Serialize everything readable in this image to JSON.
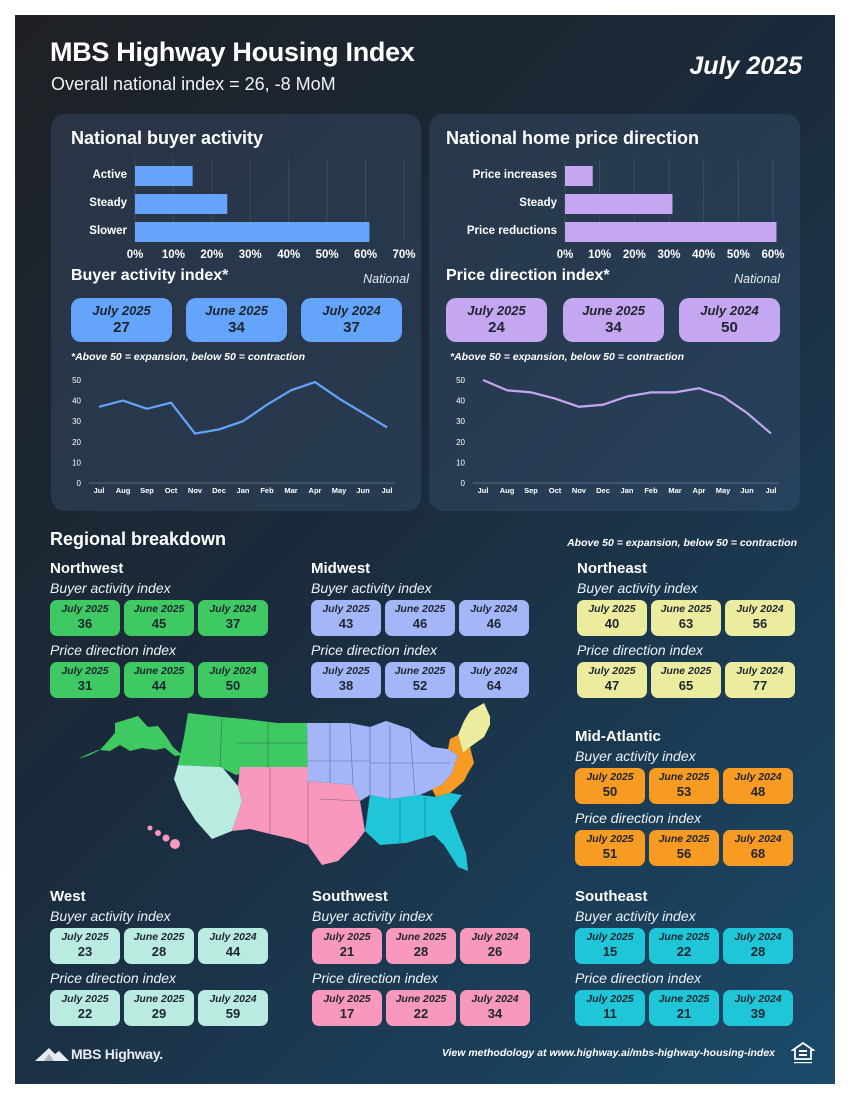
{
  "header": {
    "title": "MBS Highway Housing Index",
    "subtitle": "Overall national index = 26, -8 MoM",
    "date": "July 2025"
  },
  "colors": {
    "buyer": "#64a4fa",
    "price": "#c5a6f1",
    "northwest": "#3ec962",
    "midwest": "#a3b6f8",
    "northeast": "#ecec9e",
    "midatlantic": "#f79b22",
    "west": "#b9ebe1",
    "southwest": "#f898bd",
    "southeast": "#1ec6d8"
  },
  "national": {
    "buyer_panel_title": "National buyer activity",
    "price_panel_title": "National home price direction",
    "buyer_index_title": "Buyer activity index*",
    "price_index_title": "Price direction index*",
    "national_label": "National",
    "note": "*Above 50 = expansion, below 50 = contraction",
    "buyer_boxes": [
      {
        "period": "July 2025",
        "value": "27"
      },
      {
        "period": "June 2025",
        "value": "34"
      },
      {
        "period": "July 2024",
        "value": "37"
      }
    ],
    "price_boxes": [
      {
        "period": "July 2025",
        "value": "24"
      },
      {
        "period": "June 2025",
        "value": "34"
      },
      {
        "period": "July 2024",
        "value": "50"
      }
    ]
  },
  "chart_data": [
    {
      "id": "buyer-activity-bars",
      "type": "bar",
      "orientation": "horizontal",
      "categories": [
        "Active",
        "Steady",
        "Slower"
      ],
      "values": [
        15,
        24,
        61
      ],
      "xlim": [
        0,
        70
      ],
      "xticks": [
        "0%",
        "10%",
        "20%",
        "30%",
        "40%",
        "50%",
        "60%",
        "70%"
      ],
      "color": "#64a4fa"
    },
    {
      "id": "price-direction-bars",
      "type": "bar",
      "orientation": "horizontal",
      "categories": [
        "Price increases",
        "Steady",
        "Price reductions"
      ],
      "values": [
        8,
        31,
        61
      ],
      "xlim": [
        0,
        60
      ],
      "xticks": [
        "0%",
        "10%",
        "20%",
        "30%",
        "40%",
        "50%",
        "60%"
      ],
      "color": "#c5a6f1"
    },
    {
      "id": "buyer-activity-line",
      "type": "line",
      "x": [
        "Jul",
        "Aug",
        "Sep",
        "Oct",
        "Nov",
        "Dec",
        "Jan",
        "Feb",
        "Mar",
        "Apr",
        "May",
        "Jun",
        "Jul"
      ],
      "values": [
        37,
        40,
        36,
        39,
        24,
        26,
        30,
        38,
        45,
        49,
        41,
        34,
        27
      ],
      "ylim": [
        0,
        50
      ],
      "yticks": [
        0,
        10,
        20,
        30,
        40,
        50
      ],
      "color": "#64a4fa"
    },
    {
      "id": "price-direction-line",
      "type": "line",
      "x": [
        "Jul",
        "Aug",
        "Sep",
        "Oct",
        "Nov",
        "Dec",
        "Jan",
        "Feb",
        "Mar",
        "Apr",
        "May",
        "Jun",
        "Jul"
      ],
      "values": [
        50,
        45,
        44,
        41,
        37,
        38,
        42,
        44,
        44,
        46,
        42,
        34,
        24
      ],
      "ylim": [
        0,
        50
      ],
      "yticks": [
        0,
        10,
        20,
        30,
        40,
        50
      ],
      "color": "#c5a6f1"
    }
  ],
  "regional": {
    "title": "Regional breakdown",
    "note": "Above 50 = expansion, below 50 = contraction",
    "buyer_label": "Buyer activity index",
    "price_label": "Price direction index",
    "regions": [
      {
        "name": "Northwest",
        "color": "#3ec962",
        "buyer": [
          {
            "p": "July 2025",
            "v": "36"
          },
          {
            "p": "June 2025",
            "v": "45"
          },
          {
            "p": "July 2024",
            "v": "37"
          }
        ],
        "price": [
          {
            "p": "July 2025",
            "v": "31"
          },
          {
            "p": "June 2025",
            "v": "44"
          },
          {
            "p": "July 2024",
            "v": "50"
          }
        ]
      },
      {
        "name": "Midwest",
        "color": "#a3b6f8",
        "buyer": [
          {
            "p": "July 2025",
            "v": "43"
          },
          {
            "p": "June 2025",
            "v": "46"
          },
          {
            "p": "July 2024",
            "v": "46"
          }
        ],
        "price": [
          {
            "p": "July 2025",
            "v": "38"
          },
          {
            "p": "June 2025",
            "v": "52"
          },
          {
            "p": "July 2024",
            "v": "64"
          }
        ]
      },
      {
        "name": "Northeast",
        "color": "#ecec9e",
        "buyer": [
          {
            "p": "July 2025",
            "v": "40"
          },
          {
            "p": "June 2025",
            "v": "63"
          },
          {
            "p": "July 2024",
            "v": "56"
          }
        ],
        "price": [
          {
            "p": "July 2025",
            "v": "47"
          },
          {
            "p": "June 2025",
            "v": "65"
          },
          {
            "p": "July 2024",
            "v": "77"
          }
        ]
      },
      {
        "name": "Mid-Atlantic",
        "color": "#f79b22",
        "buyer": [
          {
            "p": "July 2025",
            "v": "50"
          },
          {
            "p": "June 2025",
            "v": "53"
          },
          {
            "p": "July 2024",
            "v": "48"
          }
        ],
        "price": [
          {
            "p": "July 2025",
            "v": "51"
          },
          {
            "p": "June 2025",
            "v": "56"
          },
          {
            "p": "July 2024",
            "v": "68"
          }
        ]
      },
      {
        "name": "West",
        "color": "#b9ebe1",
        "buyer": [
          {
            "p": "July 2025",
            "v": "23"
          },
          {
            "p": "June 2025",
            "v": "28"
          },
          {
            "p": "July 2024",
            "v": "44"
          }
        ],
        "price": [
          {
            "p": "July 2025",
            "v": "22"
          },
          {
            "p": "June 2025",
            "v": "29"
          },
          {
            "p": "July 2024",
            "v": "59"
          }
        ]
      },
      {
        "name": "Southwest",
        "color": "#f898bd",
        "buyer": [
          {
            "p": "July 2025",
            "v": "21"
          },
          {
            "p": "June 2025",
            "v": "28"
          },
          {
            "p": "July 2024",
            "v": "26"
          }
        ],
        "price": [
          {
            "p": "July 2025",
            "v": "17"
          },
          {
            "p": "June 2025",
            "v": "22"
          },
          {
            "p": "July 2024",
            "v": "34"
          }
        ]
      },
      {
        "name": "Southeast",
        "color": "#1ec6d8",
        "buyer": [
          {
            "p": "July 2025",
            "v": "15"
          },
          {
            "p": "June 2025",
            "v": "22"
          },
          {
            "p": "July 2024",
            "v": "28"
          }
        ],
        "price": [
          {
            "p": "July 2025",
            "v": "11"
          },
          {
            "p": "June 2025",
            "v": "21"
          },
          {
            "p": "July 2024",
            "v": "39"
          }
        ]
      }
    ]
  },
  "footer": {
    "logo_text": "MBS Highway.",
    "methodology": "View methodology at www.highway.ai/mbs-highway-housing-index",
    "eho_icon": "equal-housing-opportunity-icon"
  }
}
